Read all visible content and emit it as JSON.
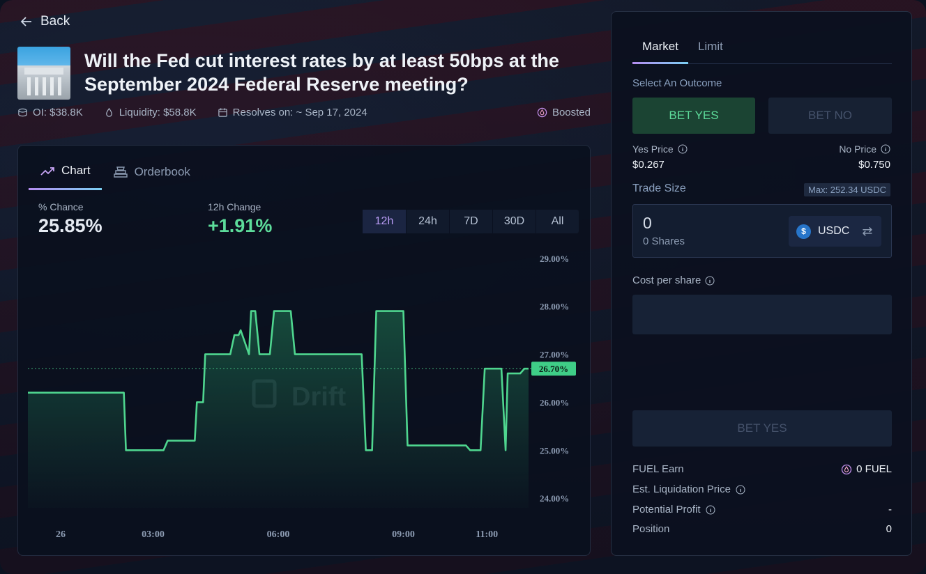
{
  "header": {
    "back_label": "Back",
    "title": "Will the Fed cut interest rates by at least 50bps at the September 2024 Federal Reserve meeting?",
    "oi": "OI: $38.8K",
    "liquidity": "Liquidity: $58.8K",
    "resolves": "Resolves on: ~ Sep 17, 2024",
    "boosted": "Boosted"
  },
  "chart_card": {
    "tabs": [
      {
        "label": "Chart"
      },
      {
        "label": "Orderbook"
      }
    ],
    "chance_label": "% Chance",
    "chance_value": "25.85%",
    "change_label": "12h Change",
    "change_value": "+1.91%",
    "ranges": [
      "12h",
      "24h",
      "7D",
      "30D",
      "All"
    ],
    "active_range": "12h",
    "watermark": "Drift"
  },
  "chart_data": {
    "type": "area",
    "title": "",
    "xlabel": "",
    "ylabel": "",
    "x_ticks": [
      "26",
      "03:00",
      "06:00",
      "09:00",
      "11:00"
    ],
    "y_ticks": [
      "29.00%",
      "28.00%",
      "27.00%",
      "26.00%",
      "25.00%",
      "24.00%"
    ],
    "ylim": [
      23.8,
      29.2
    ],
    "current_label": "26.70%",
    "current_value": 26.7,
    "series": [
      {
        "x": [
          0,
          2.3,
          2.35,
          3.25,
          3.35,
          4,
          4.05,
          4.2,
          4.25,
          4.3,
          4.4,
          4.85,
          4.95,
          5.05,
          5.1,
          5.3,
          5.35,
          5.45,
          5.55,
          5.6,
          5.8,
          5.9,
          6.3,
          6.4,
          6.7,
          6.8,
          8.0,
          8.1,
          8.25,
          8.35,
          9.0,
          9.1,
          10.5,
          10.6,
          10.85,
          10.95,
          11.35,
          11.45,
          11.5,
          11.8,
          11.9,
          12
        ],
        "y": [
          26.2,
          26.2,
          25.0,
          25.0,
          25.2,
          25.2,
          26.0,
          26.0,
          27.0,
          27.0,
          27.0,
          27.0,
          27.4,
          27.4,
          27.5,
          27.0,
          27.9,
          27.9,
          27.0,
          27.0,
          27.0,
          27.9,
          27.9,
          27.0,
          27.0,
          27.0,
          27.0,
          25.0,
          25.0,
          27.9,
          27.9,
          25.1,
          25.1,
          25.0,
          25.0,
          26.7,
          26.7,
          25.0,
          26.6,
          26.6,
          26.7,
          26.7
        ],
        "color": "#4fd68f"
      }
    ],
    "x_tick_positions": [
      0,
      3,
      6,
      9,
      11
    ]
  },
  "panel": {
    "tabs": [
      {
        "label": "Market"
      },
      {
        "label": "Limit"
      }
    ],
    "select_label": "Select An Outcome",
    "bet_yes": "BET YES",
    "bet_no": "BET NO",
    "yes_price_label": "Yes Price",
    "yes_price": "$0.267",
    "no_price_label": "No Price",
    "no_price": "$0.750",
    "trade_size_label": "Trade Size",
    "max_label": "Max: 252.34 USDC",
    "amount": "0",
    "shares": "0 Shares",
    "token": "USDC",
    "cost_label": "Cost per share",
    "submit_label": "BET YES",
    "fuel_label": "FUEL Earn",
    "fuel_value": "0 FUEL",
    "liq_label": "Est. Liquidation Price",
    "profit_label": "Potential Profit",
    "profit_value": "-",
    "position_label": "Position",
    "position_value": "0"
  },
  "colors": {
    "accent_green": "#5ddc9b",
    "accent_purple": "#b58cf0"
  }
}
